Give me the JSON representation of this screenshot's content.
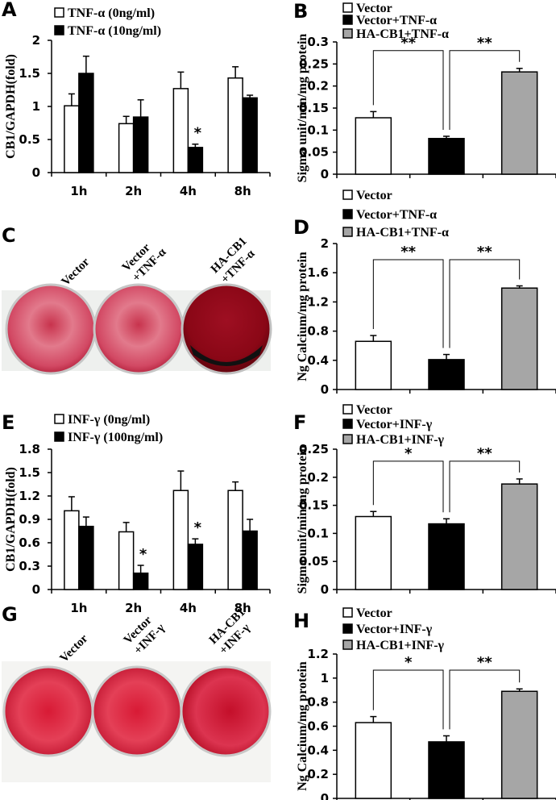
{
  "chart_data": [
    {
      "id": "A",
      "panel_label": "A",
      "type": "bar",
      "ylabel": "CB1/GAPDH(fold)",
      "categories": [
        "1h",
        "2h",
        "4h",
        "8h"
      ],
      "ylim": [
        0,
        2
      ],
      "yticks": [
        "0",
        "0.5",
        "1",
        "1.5",
        "2"
      ],
      "series": [
        {
          "name": "TNF-α (0ng/ml)",
          "fill": "#ffffff",
          "values": [
            1.01,
            0.74,
            1.27,
            1.43
          ],
          "errors": [
            0.18,
            0.11,
            0.25,
            0.17
          ]
        },
        {
          "name": "TNF-α (10ng/ml)",
          "fill": "#000000",
          "values": [
            1.5,
            0.84,
            0.38,
            1.13
          ],
          "errors": [
            0.26,
            0.26,
            0.05,
            0.04
          ]
        }
      ],
      "annotations": [
        {
          "text": "*",
          "category": 2,
          "series": 1
        }
      ]
    },
    {
      "id": "B",
      "panel_label": "B",
      "type": "bar",
      "ylabel": "Sigma unit/min/mg protein",
      "categories": [
        "Vector",
        "Vector+TNF-α",
        "HA-CB1+TNF-α"
      ],
      "ylim": [
        0,
        0.3
      ],
      "yticks": [
        "0",
        "0.05",
        "0.1",
        "0.15",
        "0.2",
        "0.25",
        "0.3"
      ],
      "fills": [
        "#ffffff",
        "#000000",
        "#a6a6a6"
      ],
      "values": [
        0.128,
        0.081,
        0.232
      ],
      "errors": [
        0.014,
        0.005,
        0.008
      ],
      "brackets": [
        {
          "from": 0,
          "to": 1,
          "text": "**"
        },
        {
          "from": 1,
          "to": 2,
          "text": "**"
        }
      ]
    },
    {
      "id": "D",
      "panel_label": "D",
      "type": "bar",
      "ylabel": "Ng Calcium/mg protein",
      "categories": [
        "Vector",
        "Vector+TNF-α",
        "HA-CB1+TNF-α"
      ],
      "ylim": [
        0,
        2
      ],
      "yticks": [
        "0",
        "0.4",
        "0.8",
        "1.2",
        "1.6",
        "2"
      ],
      "fills": [
        "#ffffff",
        "#000000",
        "#a6a6a6"
      ],
      "values": [
        0.66,
        0.41,
        1.39
      ],
      "errors": [
        0.08,
        0.07,
        0.03
      ],
      "brackets": [
        {
          "from": 0,
          "to": 1,
          "text": "**"
        },
        {
          "from": 1,
          "to": 2,
          "text": "**"
        }
      ]
    },
    {
      "id": "E",
      "panel_label": "E",
      "type": "bar",
      "ylabel": "CB1/GAPDH(fold)",
      "categories": [
        "1h",
        "2h",
        "4h",
        "8h"
      ],
      "ylim": [
        0,
        1.8
      ],
      "yticks": [
        "0",
        "0.3",
        "0.6",
        "0.9",
        "1.2",
        "1.5",
        "1.8"
      ],
      "series": [
        {
          "name": "INF-γ (0ng/ml)",
          "fill": "#ffffff",
          "values": [
            1.01,
            0.74,
            1.27,
            1.27
          ],
          "errors": [
            0.18,
            0.12,
            0.25,
            0.11
          ]
        },
        {
          "name": "INF-γ (100ng/ml)",
          "fill": "#000000",
          "values": [
            0.81,
            0.21,
            0.58,
            0.75
          ],
          "errors": [
            0.12,
            0.1,
            0.07,
            0.15
          ]
        }
      ],
      "annotations": [
        {
          "text": "*",
          "category": 1,
          "series": 1
        },
        {
          "text": "*",
          "category": 2,
          "series": 1
        }
      ]
    },
    {
      "id": "F",
      "panel_label": "F",
      "type": "bar",
      "ylabel": "Sigma unit/min/mg protein",
      "categories": [
        "Vector",
        "Vector+INF-γ",
        "HA-CB1+INF-γ"
      ],
      "ylim": [
        0,
        0.25
      ],
      "yticks": [
        "0",
        "0.05",
        "0.1",
        "0.15",
        "0.2",
        "0.25"
      ],
      "fills": [
        "#ffffff",
        "#000000",
        "#a6a6a6"
      ],
      "values": [
        0.13,
        0.117,
        0.188
      ],
      "errors": [
        0.009,
        0.009,
        0.009
      ],
      "brackets": [
        {
          "from": 0,
          "to": 1,
          "text": "*"
        },
        {
          "from": 1,
          "to": 2,
          "text": "**"
        }
      ]
    },
    {
      "id": "H",
      "panel_label": "H",
      "type": "bar",
      "ylabel": "Ng Calcium/mg protein",
      "categories": [
        "Vector",
        "Vector+INF-γ",
        "HA-CB1+INF-γ"
      ],
      "ylim": [
        0,
        1.2
      ],
      "yticks": [
        "0",
        "0.2",
        "0.4",
        "0.6",
        "0.8",
        "1",
        "1.2"
      ],
      "fills": [
        "#ffffff",
        "#000000",
        "#a6a6a6"
      ],
      "values": [
        0.63,
        0.47,
        0.89
      ],
      "errors": [
        0.05,
        0.05,
        0.02
      ],
      "brackets": [
        {
          "from": 0,
          "to": 1,
          "text": "*"
        },
        {
          "from": 1,
          "to": 2,
          "text": "**"
        }
      ]
    }
  ],
  "well_panels": [
    {
      "id": "C",
      "panel_label": "C",
      "labels": [
        [
          "Vector"
        ],
        [
          "Vector",
          "+TNF-α"
        ],
        [
          "HA-CB1",
          "+TNF-α"
        ]
      ]
    },
    {
      "id": "G",
      "panel_label": "G",
      "labels": [
        [
          "Vector"
        ],
        [
          "Vector",
          "+INF-γ"
        ],
        [
          "HA-CB1",
          "+INF-γ"
        ]
      ]
    }
  ]
}
